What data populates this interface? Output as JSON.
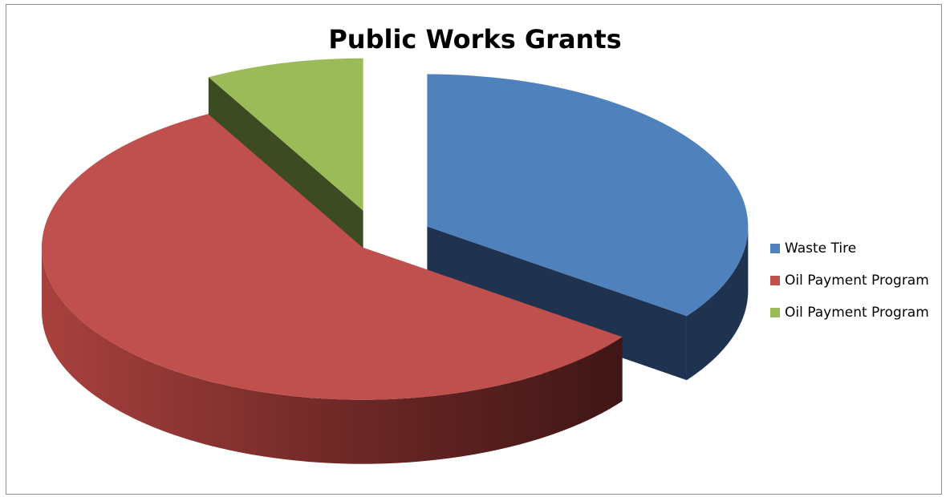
{
  "chart_data": {
    "type": "pie",
    "style": "3d-exploded",
    "title": "Public Works Grants",
    "legend_position": "right",
    "slices": [
      {
        "label": "Waste Tire",
        "value": 35,
        "color": "#4f81bd"
      },
      {
        "label": "Oil Payment Program",
        "value": 57,
        "color": "#c0504d"
      },
      {
        "label": "Oil Payment Program",
        "value": 8,
        "color": "#9bbb59"
      }
    ]
  }
}
